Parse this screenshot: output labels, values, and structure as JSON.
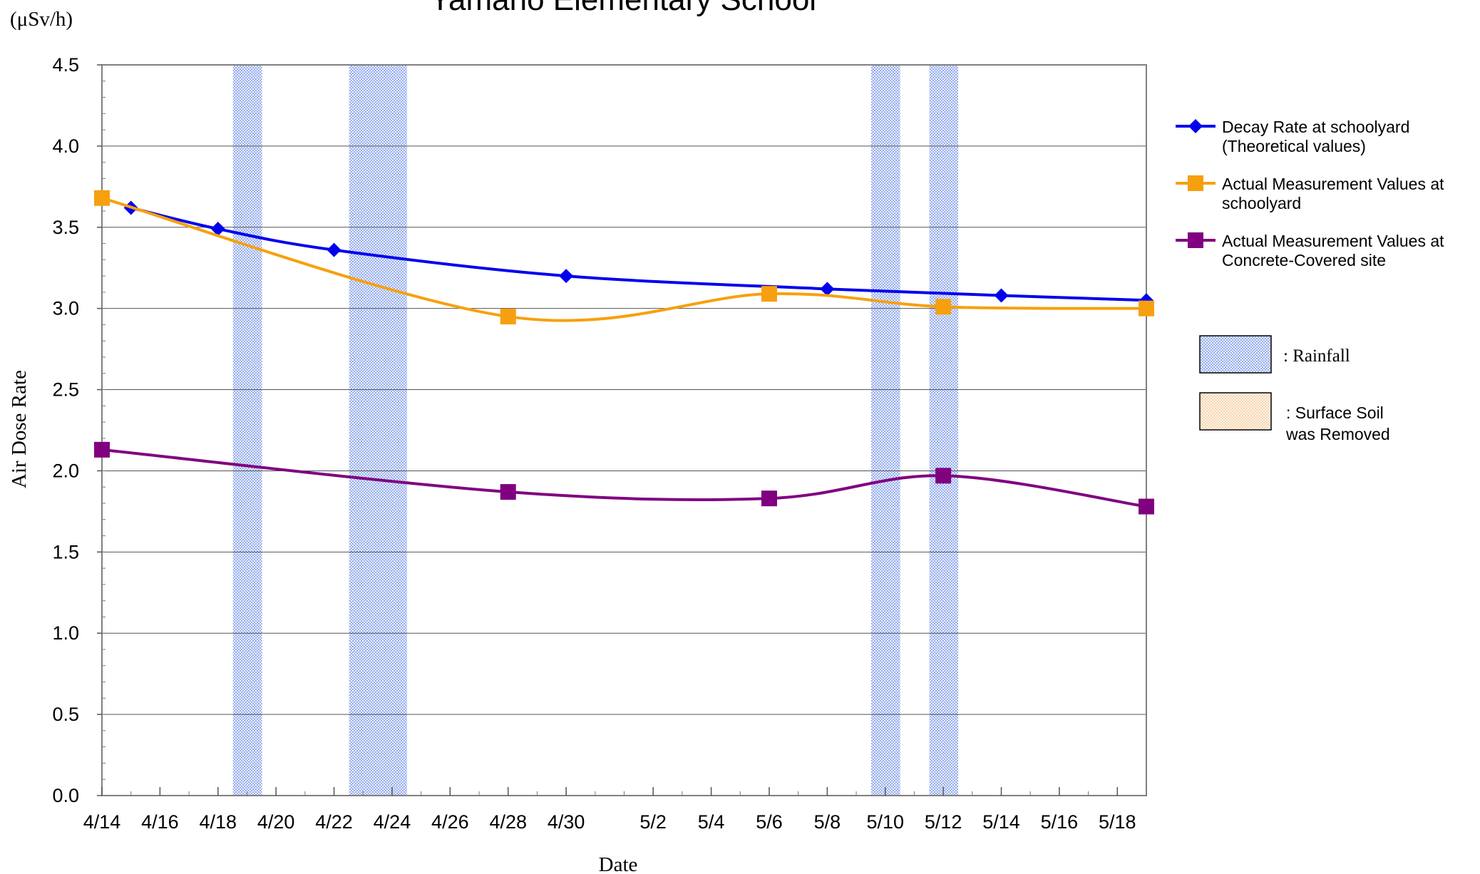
{
  "chart_data": {
    "type": "line",
    "title": "Yamano Elementary School",
    "unit_label": "(μSv/h)",
    "xlabel": "Date",
    "ylabel": "Air Dose Rate",
    "ylim": [
      0,
      4.5
    ],
    "y_ticks": [
      "0.0",
      "0.5",
      "1.0",
      "1.5",
      "2.0",
      "2.5",
      "3.0",
      "3.5",
      "4.0",
      "4.5"
    ],
    "x_start": "4/14",
    "x_end": "5/19",
    "x_ticks": [
      "4/14",
      "4/16",
      "4/18",
      "4/20",
      "4/22",
      "4/24",
      "4/26",
      "4/28",
      "4/30",
      "5/2",
      "5/4",
      "5/6",
      "5/8",
      "5/10",
      "5/12",
      "5/14",
      "5/16",
      "5/18"
    ],
    "grid": "horizontal",
    "legend_position": "right",
    "rainfall_periods": [
      {
        "from": "4/18",
        "to": "4/19"
      },
      {
        "from": "4/22",
        "to": "4/24"
      },
      {
        "from": "5/9",
        "to": "5/10"
      },
      {
        "from": "5/11",
        "to": "5/12"
      }
    ],
    "series": [
      {
        "name": "Decay Rate at schoolyard (Theoretical values)",
        "legend_lines": [
          "Decay Rate at schoolyard",
          "(Theoretical values)"
        ],
        "color": "#0000ee",
        "marker": "diamond",
        "x": [
          "4/15",
          "4/18",
          "4/22",
          "4/30",
          "5/8",
          "5/14",
          "5/19"
        ],
        "values": [
          3.62,
          3.49,
          3.36,
          3.2,
          3.12,
          3.08,
          3.05
        ]
      },
      {
        "name": "Actual Measurement Values at schoolyard",
        "legend_lines": [
          "Actual Measurement Values at",
          "schoolyard"
        ],
        "color": "#f7a00f",
        "marker": "square",
        "x": [
          "4/14",
          "4/28",
          "5/6",
          "5/12",
          "5/19"
        ],
        "values": [
          3.68,
          2.95,
          3.09,
          3.01,
          3.0
        ]
      },
      {
        "name": "Actual Measurement Values at Concrete-Covered site",
        "legend_lines": [
          "Actual Measurement Values at",
          "Concrete-Covered site"
        ],
        "color": "#800080",
        "marker": "square",
        "x": [
          "4/14",
          "4/28",
          "5/6",
          "5/12",
          "5/19"
        ],
        "values": [
          2.13,
          1.87,
          1.83,
          1.97,
          1.78
        ]
      }
    ],
    "legend_boxes": [
      {
        "label": ": Rainfall",
        "lines": [
          ": Rainfall"
        ],
        "fill": "#aabff5"
      },
      {
        "label": ": Surface Soil was Removed",
        "lines": [
          ": Surface Soil",
          "was Removed"
        ],
        "fill": "#f8d7a8"
      }
    ]
  }
}
